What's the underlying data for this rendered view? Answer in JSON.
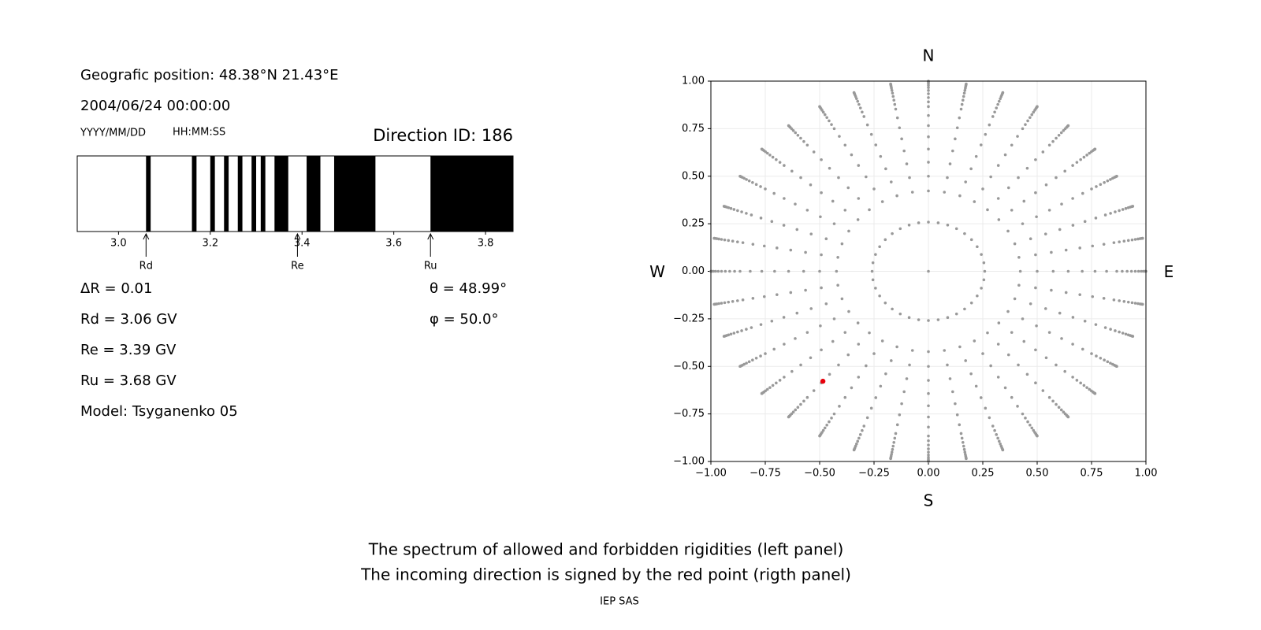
{
  "header": {
    "position": "Geografic position: 48.38°N 21.43°E",
    "datetime": "2004/06/24 00:00:00",
    "date_format": "YYYY/MM/DD",
    "time_format": "HH:MM:SS",
    "direction": "Direction ID: 186"
  },
  "parameters": {
    "left": [
      "ΔR = 0.01",
      "Rd = 3.06 GV",
      "Re = 3.39 GV",
      "Ru = 3.68 GV",
      "Model: Tsyganenko 05"
    ],
    "right": [
      "θ = 48.99°",
      "φ = 50.0°"
    ]
  },
  "chart_data": [
    {
      "type": "spectrum",
      "xlim": [
        2.91,
        3.86
      ],
      "xticks": [
        {
          "value": 3,
          "label": "3.0"
        },
        3.2,
        3.4,
        3.6,
        3.8
      ],
      "forbidden": [
        [
          3.06,
          3.07
        ],
        [
          3.16,
          3.17
        ],
        [
          3.2,
          3.21
        ],
        [
          3.23,
          3.24
        ],
        [
          3.26,
          3.27
        ],
        [
          3.29,
          3.3
        ],
        [
          3.31,
          3.32
        ],
        [
          3.34,
          3.37
        ],
        [
          3.41,
          3.44
        ],
        [
          3.47,
          3.56
        ],
        [
          3.68,
          3.86
        ]
      ],
      "color": "#000000",
      "markers": [
        {
          "name": "Rd",
          "value": 3.06
        },
        {
          "name": "Re",
          "value": 3.39
        },
        {
          "name": "Ru",
          "value": 3.68
        }
      ]
    },
    {
      "type": "directions",
      "xlim": [
        -1,
        1
      ],
      "ylim": [
        -1,
        1
      ],
      "xticks": [
        {
          "value": -1,
          "label": "−1.00"
        },
        {
          "value": -0.75,
          "label": "−0.75"
        },
        {
          "value": -0.5,
          "label": "−0.50"
        },
        {
          "value": -0.25,
          "label": "−0.25"
        },
        {
          "value": 0,
          "label": "0.00"
        },
        {
          "value": 0.25,
          "label": "0.25"
        },
        {
          "value": 0.5,
          "label": "0.50"
        },
        {
          "value": 0.75,
          "label": "0.75"
        },
        {
          "value": 1,
          "label": "1.00"
        }
      ],
      "yticks": [
        {
          "value": -1,
          "label": "−1.00"
        },
        {
          "value": -0.75,
          "label": "−0.75"
        },
        {
          "value": -0.5,
          "label": "−0.50"
        },
        {
          "value": -0.25,
          "label": "−0.25"
        },
        {
          "value": 0,
          "label": "0.00"
        },
        {
          "value": 0.25,
          "label": "0.25"
        },
        {
          "value": 0.5,
          "label": "0.50"
        },
        {
          "value": 0.75,
          "label": "0.75"
        },
        {
          "value": 1,
          "label": "1.00"
        }
      ],
      "grid": true,
      "compass": {
        "north": "N",
        "south": "S",
        "west": "W",
        "east": "E"
      },
      "color": "#999999",
      "points": [
        {
          "theta": [
            0
          ],
          "phi": [
            0
          ]
        },
        {
          "theta": [
            15
          ],
          "phi": [
            0,
            10,
            20,
            30,
            40,
            50,
            60,
            70,
            80,
            90,
            100,
            110,
            120,
            130,
            140,
            150,
            160,
            170,
            180,
            190,
            200,
            210,
            220,
            230,
            240,
            250,
            260,
            270,
            280,
            290,
            300,
            310,
            320,
            330,
            340,
            350
          ]
        },
        {
          "theta": [
            25,
            30,
            35,
            40,
            45,
            50,
            55,
            60,
            63,
            66,
            69,
            72,
            75,
            78,
            81,
            84,
            87,
            90
          ],
          "phi": [
            0,
            10,
            20,
            30,
            40,
            50,
            60,
            70,
            80,
            90,
            100,
            110,
            120,
            130,
            140,
            150,
            160,
            170,
            180,
            190,
            200,
            210,
            220,
            230,
            240,
            250,
            260,
            270,
            280,
            290,
            300,
            310,
            320,
            330,
            340,
            350
          ]
        }
      ],
      "highlight": {
        "theta": 48.99,
        "phi": 50.0,
        "color": "#e8000b"
      }
    }
  ],
  "caption": [
    "The spectrum of allowed and forbidden rigidities (left panel)",
    "The incoming direction is signed by the red point (rigth panel)"
  ],
  "footer": "IEP SAS"
}
